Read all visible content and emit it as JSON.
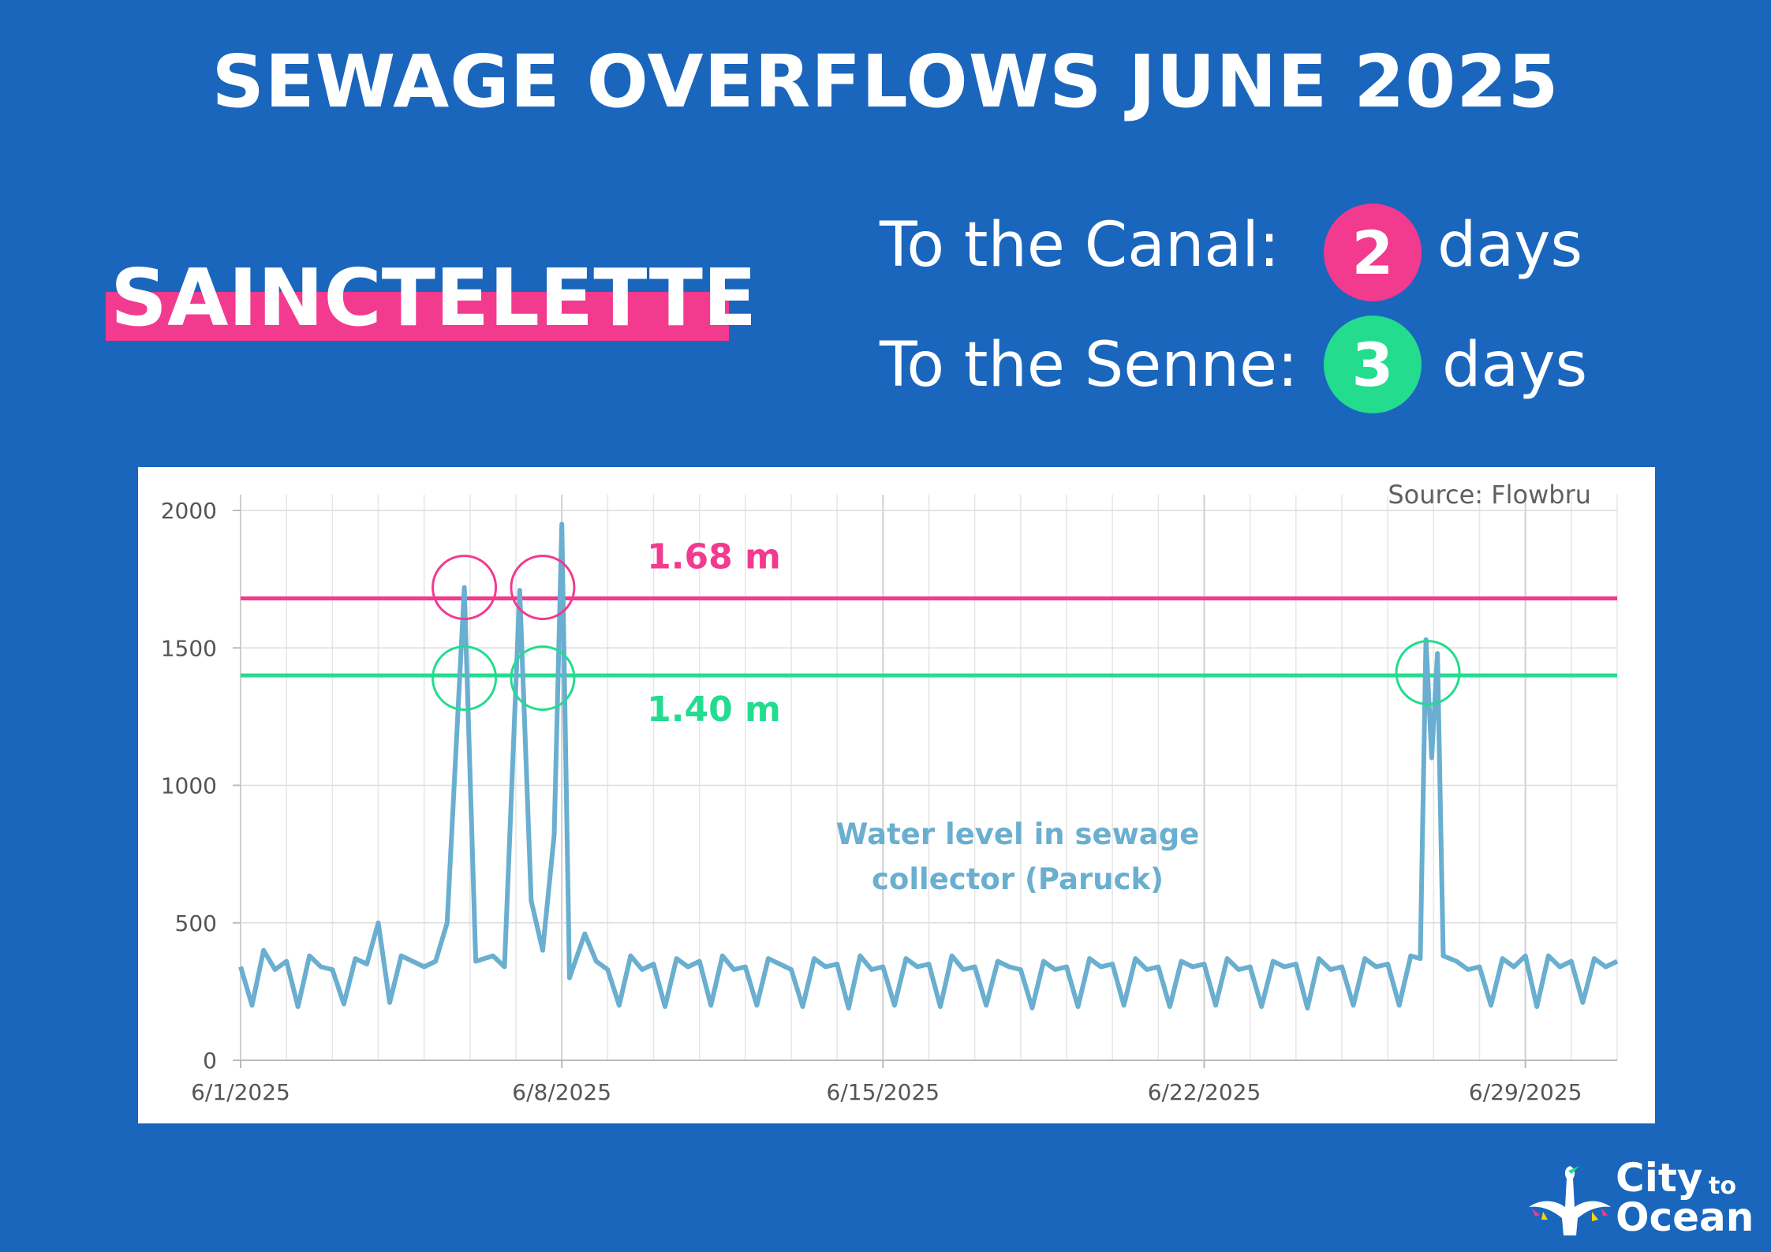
{
  "title": "SEWAGE OVERFLOWS JUNE 2025",
  "station": "SAINCTELETTE",
  "stats": [
    {
      "label": "To the Canal:",
      "value": "2",
      "unit": "days",
      "color": "#f23a8e"
    },
    {
      "label": "To the Senne:",
      "value": "3",
      "unit": "days",
      "color": "#23dc8e"
    }
  ],
  "chart_data": {
    "type": "line",
    "source": "Source: Flowbru",
    "x_ticks": [
      "6/1/2025",
      "6/8/2025",
      "6/15/2025",
      "6/22/2025",
      "6/29/2025"
    ],
    "y_ticks": [
      "2000",
      "1500",
      "1000",
      "500",
      "0"
    ],
    "ylim": [
      0,
      2000
    ],
    "xlim": [
      "2025-06-01",
      "2025-07-01"
    ],
    "grid": true,
    "series": [
      {
        "name": "Water level in sewage collector (Paruck)",
        "color": "#6aaed0",
        "points": [
          [
            "2025-06-01 00:00",
            340
          ],
          [
            "2025-06-01 06:00",
            200
          ],
          [
            "2025-06-01 12:00",
            400
          ],
          [
            "2025-06-01 18:00",
            330
          ],
          [
            "2025-06-02 00:00",
            360
          ],
          [
            "2025-06-02 06:00",
            195
          ],
          [
            "2025-06-02 12:00",
            380
          ],
          [
            "2025-06-02 18:00",
            340
          ],
          [
            "2025-06-03 00:00",
            330
          ],
          [
            "2025-06-03 06:00",
            205
          ],
          [
            "2025-06-03 12:00",
            370
          ],
          [
            "2025-06-03 18:00",
            350
          ],
          [
            "2025-06-04 00:00",
            500
          ],
          [
            "2025-06-04 06:00",
            210
          ],
          [
            "2025-06-04 12:00",
            380
          ],
          [
            "2025-06-04 18:00",
            360
          ],
          [
            "2025-06-05 00:00",
            340
          ],
          [
            "2025-06-05 06:00",
            360
          ],
          [
            "2025-06-05 12:00",
            500
          ],
          [
            "2025-06-05 21:00",
            1720
          ],
          [
            "2025-06-06 03:00",
            360
          ],
          [
            "2025-06-06 12:00",
            380
          ],
          [
            "2025-06-06 18:00",
            340
          ],
          [
            "2025-06-07 02:00",
            1710
          ],
          [
            "2025-06-07 08:00",
            580
          ],
          [
            "2025-06-07 14:00",
            400
          ],
          [
            "2025-06-07 20:00",
            820
          ],
          [
            "2025-06-08 00:00",
            1950
          ],
          [
            "2025-06-08 04:00",
            300
          ],
          [
            "2025-06-08 12:00",
            460
          ],
          [
            "2025-06-08 18:00",
            360
          ],
          [
            "2025-06-09 00:00",
            330
          ],
          [
            "2025-06-09 06:00",
            200
          ],
          [
            "2025-06-09 12:00",
            380
          ],
          [
            "2025-06-09 18:00",
            330
          ],
          [
            "2025-06-10 00:00",
            350
          ],
          [
            "2025-06-10 06:00",
            195
          ],
          [
            "2025-06-10 12:00",
            370
          ],
          [
            "2025-06-10 18:00",
            340
          ],
          [
            "2025-06-11 00:00",
            360
          ],
          [
            "2025-06-11 06:00",
            200
          ],
          [
            "2025-06-11 12:00",
            380
          ],
          [
            "2025-06-11 18:00",
            330
          ],
          [
            "2025-06-12 00:00",
            340
          ],
          [
            "2025-06-12 06:00",
            200
          ],
          [
            "2025-06-12 12:00",
            370
          ],
          [
            "2025-06-12 18:00",
            350
          ],
          [
            "2025-06-13 00:00",
            330
          ],
          [
            "2025-06-13 06:00",
            195
          ],
          [
            "2025-06-13 12:00",
            370
          ],
          [
            "2025-06-13 18:00",
            340
          ],
          [
            "2025-06-14 00:00",
            350
          ],
          [
            "2025-06-14 06:00",
            190
          ],
          [
            "2025-06-14 12:00",
            380
          ],
          [
            "2025-06-14 18:00",
            330
          ],
          [
            "2025-06-15 00:00",
            340
          ],
          [
            "2025-06-15 06:00",
            200
          ],
          [
            "2025-06-15 12:00",
            370
          ],
          [
            "2025-06-15 18:00",
            340
          ],
          [
            "2025-06-16 00:00",
            350
          ],
          [
            "2025-06-16 06:00",
            195
          ],
          [
            "2025-06-16 12:00",
            380
          ],
          [
            "2025-06-16 18:00",
            330
          ],
          [
            "2025-06-17 00:00",
            340
          ],
          [
            "2025-06-17 06:00",
            200
          ],
          [
            "2025-06-17 12:00",
            360
          ],
          [
            "2025-06-17 18:00",
            340
          ],
          [
            "2025-06-18 00:00",
            330
          ],
          [
            "2025-06-18 06:00",
            190
          ],
          [
            "2025-06-18 12:00",
            360
          ],
          [
            "2025-06-18 18:00",
            330
          ],
          [
            "2025-06-19 00:00",
            340
          ],
          [
            "2025-06-19 06:00",
            195
          ],
          [
            "2025-06-19 12:00",
            370
          ],
          [
            "2025-06-19 18:00",
            340
          ],
          [
            "2025-06-20 00:00",
            350
          ],
          [
            "2025-06-20 06:00",
            200
          ],
          [
            "2025-06-20 12:00",
            370
          ],
          [
            "2025-06-20 18:00",
            330
          ],
          [
            "2025-06-21 00:00",
            340
          ],
          [
            "2025-06-21 06:00",
            195
          ],
          [
            "2025-06-21 12:00",
            360
          ],
          [
            "2025-06-21 18:00",
            340
          ],
          [
            "2025-06-22 00:00",
            350
          ],
          [
            "2025-06-22 06:00",
            200
          ],
          [
            "2025-06-22 12:00",
            370
          ],
          [
            "2025-06-22 18:00",
            330
          ],
          [
            "2025-06-23 00:00",
            340
          ],
          [
            "2025-06-23 06:00",
            195
          ],
          [
            "2025-06-23 12:00",
            360
          ],
          [
            "2025-06-23 18:00",
            340
          ],
          [
            "2025-06-24 00:00",
            350
          ],
          [
            "2025-06-24 06:00",
            190
          ],
          [
            "2025-06-24 12:00",
            370
          ],
          [
            "2025-06-24 18:00",
            330
          ],
          [
            "2025-06-25 00:00",
            340
          ],
          [
            "2025-06-25 06:00",
            200
          ],
          [
            "2025-06-25 12:00",
            370
          ],
          [
            "2025-06-25 18:00",
            340
          ],
          [
            "2025-06-26 00:00",
            350
          ],
          [
            "2025-06-26 06:00",
            200
          ],
          [
            "2025-06-26 12:00",
            380
          ],
          [
            "2025-06-26 17:00",
            370
          ],
          [
            "2025-06-26 20:00",
            1530
          ],
          [
            "2025-06-26 23:00",
            1100
          ],
          [
            "2025-06-27 02:00",
            1480
          ],
          [
            "2025-06-27 05:00",
            380
          ],
          [
            "2025-06-27 12:00",
            360
          ],
          [
            "2025-06-27 18:00",
            330
          ],
          [
            "2025-06-28 00:00",
            340
          ],
          [
            "2025-06-28 06:00",
            200
          ],
          [
            "2025-06-28 12:00",
            370
          ],
          [
            "2025-06-28 18:00",
            340
          ],
          [
            "2025-06-29 00:00",
            380
          ],
          [
            "2025-06-29 06:00",
            195
          ],
          [
            "2025-06-29 12:00",
            380
          ],
          [
            "2025-06-29 18:00",
            340
          ],
          [
            "2025-06-30 00:00",
            360
          ],
          [
            "2025-06-30 06:00",
            210
          ],
          [
            "2025-06-30 12:00",
            370
          ],
          [
            "2025-06-30 18:00",
            340
          ],
          [
            "2025-07-01 00:00",
            360
          ]
        ]
      }
    ],
    "thresholds": [
      {
        "label": "1.68 m",
        "value": 1680,
        "color": "#f23a8e"
      },
      {
        "label": "1.40 m",
        "value": 1400,
        "color": "#23dc8e"
      }
    ],
    "highlights": [
      {
        "x": "2025-06-05 21:00",
        "y": 1720,
        "color": "#f23a8e"
      },
      {
        "x": "2025-06-07 14:00",
        "y": 1720,
        "color": "#f23a8e"
      },
      {
        "x": "2025-06-05 21:00",
        "y": 1390,
        "color": "#23dc8e"
      },
      {
        "x": "2025-06-07 14:00",
        "y": 1390,
        "color": "#23dc8e"
      },
      {
        "x": "2025-06-26 21:00",
        "y": 1410,
        "color": "#23dc8e"
      }
    ],
    "annotation": "Water level in sewage collector (Paruck)"
  },
  "logo": {
    "line1": "City",
    "line2": "to",
    "line3": "Ocean"
  }
}
